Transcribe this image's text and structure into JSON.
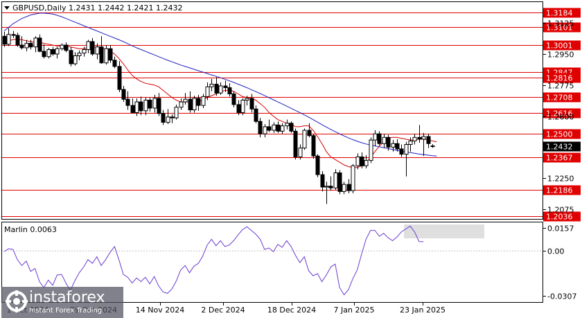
{
  "chart_data": [
    {
      "type": "candlestick",
      "title": "GBPUSD,Daily  1.2431 1.2442 1.2421 1.2432",
      "symbol": "GBPUSD",
      "timeframe": "Daily",
      "ohlc_last": {
        "open": 1.2431,
        "high": 1.2442,
        "low": 1.2421,
        "close": 1.2432
      },
      "current_price": 1.2432,
      "ylim": [
        1.1985,
        1.3225
      ],
      "price_ticks": [
        "1.3125",
        "1.2950",
        "1.2775",
        "1.2600",
        "1.2425",
        "1.2250",
        "1.2075"
      ],
      "date_ticks": [
        "14 Nov 2024",
        "2 Dec 2024",
        "18 Dec 2024",
        "7 Jan 2025",
        "23 Jan 2025"
      ],
      "date_ticks_partial": [
        "1 Oct 2024",
        "29 Oct 2024"
      ],
      "levels": [
        {
          "price": 1.3184,
          "label": "1.3184"
        },
        {
          "price": 1.3101,
          "label": "1.3101"
        },
        {
          "price": 1.3001,
          "label": "1.3001"
        },
        {
          "price": 1.2847,
          "label": "1.2847"
        },
        {
          "price": 1.2816,
          "label": "1.2816"
        },
        {
          "price": 1.2708,
          "label": "1.2708"
        },
        {
          "price": 1.2616,
          "label": "1.2616"
        },
        {
          "price": 1.25,
          "label": "1.2500"
        },
        {
          "price": 1.2367,
          "label": "1.2367"
        },
        {
          "price": 1.2186,
          "label": "1.2186"
        },
        {
          "price": 1.2036,
          "label": "1.2036"
        }
      ],
      "candles": [
        [
          1.305,
          1.3075,
          1.299,
          1.3005
        ],
        [
          1.3005,
          1.3095,
          1.2995,
          1.306
        ],
        [
          1.306,
          1.308,
          1.304,
          1.3055
        ],
        [
          1.3055,
          1.307,
          1.299,
          1.3
        ],
        [
          1.3,
          1.305,
          1.2975,
          1.2985
        ],
        [
          1.2985,
          1.303,
          1.2965,
          1.301
        ],
        [
          1.301,
          1.303,
          1.2975,
          1.299
        ],
        [
          1.299,
          1.305,
          1.296,
          1.304
        ],
        [
          1.304,
          1.306,
          1.296,
          1.2965
        ],
        [
          1.2965,
          1.3005,
          1.2925,
          1.2935
        ],
        [
          1.2935,
          1.2985,
          1.2925,
          1.2975
        ],
        [
          1.2975,
          1.299,
          1.294,
          1.295
        ],
        [
          1.295,
          1.299,
          1.2925,
          1.298
        ],
        [
          1.298,
          1.301,
          1.297,
          1.3
        ],
        [
          1.3,
          1.3015,
          1.296,
          1.297
        ],
        [
          1.297,
          1.299,
          1.288,
          1.2895
        ],
        [
          1.2895,
          1.296,
          1.2885,
          1.294
        ],
        [
          1.294,
          1.297,
          1.2915,
          1.2955
        ],
        [
          1.2955,
          1.299,
          1.2935,
          1.2975
        ],
        [
          1.2975,
          1.303,
          1.2955,
          1.302
        ],
        [
          1.302,
          1.304,
          1.294,
          1.295
        ],
        [
          1.295,
          1.301,
          1.292,
          1.299
        ],
        [
          1.299,
          1.305,
          1.2895,
          1.29
        ],
        [
          1.29,
          1.3,
          1.289,
          1.298
        ],
        [
          1.298,
          1.3,
          1.29,
          1.2915
        ],
        [
          1.2915,
          1.2935,
          1.287,
          1.288
        ],
        [
          1.288,
          1.291,
          1.2735,
          1.275
        ],
        [
          1.275,
          1.277,
          1.268,
          1.2695
        ],
        [
          1.2695,
          1.274,
          1.2635,
          1.266
        ],
        [
          1.266,
          1.27,
          1.2615,
          1.262
        ],
        [
          1.262,
          1.27,
          1.26,
          1.268
        ],
        [
          1.268,
          1.271,
          1.2605,
          1.263
        ],
        [
          1.263,
          1.2705,
          1.2605,
          1.269
        ],
        [
          1.269,
          1.2705,
          1.2625,
          1.2645
        ],
        [
          1.2645,
          1.272,
          1.262,
          1.27
        ],
        [
          1.27,
          1.273,
          1.26,
          1.2615
        ],
        [
          1.2615,
          1.2635,
          1.255,
          1.2565
        ],
        [
          1.2565,
          1.264,
          1.2555,
          1.2595
        ],
        [
          1.2595,
          1.261,
          1.256,
          1.259
        ],
        [
          1.259,
          1.2665,
          1.258,
          1.265
        ],
        [
          1.265,
          1.27,
          1.2635,
          1.268
        ],
        [
          1.268,
          1.273,
          1.2665,
          1.2695
        ],
        [
          1.2695,
          1.274,
          1.262,
          1.2635
        ],
        [
          1.2635,
          1.2715,
          1.262,
          1.27
        ],
        [
          1.27,
          1.272,
          1.263,
          1.266
        ],
        [
          1.266,
          1.2725,
          1.2645,
          1.271
        ],
        [
          1.271,
          1.279,
          1.269,
          1.2765
        ],
        [
          1.2765,
          1.281,
          1.274,
          1.278
        ],
        [
          1.278,
          1.282,
          1.2715,
          1.273
        ],
        [
          1.273,
          1.279,
          1.272,
          1.277
        ],
        [
          1.277,
          1.28,
          1.2735,
          1.276
        ],
        [
          1.276,
          1.2785,
          1.271,
          1.2725
        ],
        [
          1.2725,
          1.274,
          1.265,
          1.2665
        ],
        [
          1.2665,
          1.269,
          1.2605,
          1.262
        ],
        [
          1.262,
          1.27,
          1.2605,
          1.269
        ],
        [
          1.269,
          1.2715,
          1.266,
          1.27
        ],
        [
          1.27,
          1.2725,
          1.262,
          1.264
        ],
        [
          1.264,
          1.266,
          1.256,
          1.257
        ],
        [
          1.257,
          1.259,
          1.248,
          1.25
        ],
        [
          1.25,
          1.2555,
          1.248,
          1.254
        ],
        [
          1.254,
          1.258,
          1.251,
          1.252
        ],
        [
          1.252,
          1.2565,
          1.2505,
          1.255
        ],
        [
          1.255,
          1.257,
          1.2505,
          1.2515
        ],
        [
          1.2515,
          1.256,
          1.25,
          1.2545
        ],
        [
          1.2545,
          1.258,
          1.2525,
          1.256
        ],
        [
          1.256,
          1.257,
          1.2505,
          1.2515
        ],
        [
          1.2515,
          1.253,
          1.2355,
          1.237
        ],
        [
          1.237,
          1.244,
          1.2355,
          1.242
        ],
        [
          1.242,
          1.253,
          1.241,
          1.252
        ],
        [
          1.252,
          1.256,
          1.248,
          1.249
        ],
        [
          1.249,
          1.25,
          1.236,
          1.2375
        ],
        [
          1.2375,
          1.2385,
          1.2255,
          1.227
        ],
        [
          1.227,
          1.229,
          1.2175,
          1.22
        ],
        [
          1.22,
          1.223,
          1.2105,
          1.2205
        ],
        [
          1.2205,
          1.226,
          1.218,
          1.2195
        ],
        [
          1.2195,
          1.23,
          1.2185,
          1.228
        ],
        [
          1.228,
          1.2295,
          1.216,
          1.2175
        ],
        [
          1.2175,
          1.223,
          1.216,
          1.2215
        ],
        [
          1.2215,
          1.2245,
          1.2165,
          1.218
        ],
        [
          1.218,
          1.233,
          1.2165,
          1.232
        ],
        [
          1.232,
          1.239,
          1.23,
          1.237
        ],
        [
          1.237,
          1.2395,
          1.2305,
          1.232
        ],
        [
          1.232,
          1.238,
          1.2305,
          1.235
        ],
        [
          1.235,
          1.248,
          1.2335,
          1.2465
        ],
        [
          1.2465,
          1.252,
          1.243,
          1.25
        ],
        [
          1.25,
          1.2515,
          1.2435,
          1.2445
        ],
        [
          1.2445,
          1.25,
          1.242,
          1.248
        ],
        [
          1.248,
          1.2495,
          1.2405,
          1.2425
        ],
        [
          1.2425,
          1.2465,
          1.24,
          1.2445
        ],
        [
          1.2445,
          1.247,
          1.24,
          1.2415
        ],
        [
          1.2415,
          1.244,
          1.237,
          1.2385
        ],
        [
          1.2385,
          1.2455,
          1.226,
          1.244
        ],
        [
          1.244,
          1.248,
          1.24,
          1.246
        ],
        [
          1.246,
          1.25,
          1.244,
          1.248
        ],
        [
          1.248,
          1.255,
          1.245,
          1.247
        ],
        [
          1.247,
          1.2505,
          1.2375,
          1.2485
        ],
        [
          1.2485,
          1.25,
          1.242,
          1.2445
        ],
        [
          1.2431,
          1.2442,
          1.2421,
          1.2432
        ]
      ],
      "series": [
        {
          "name": "",
          "color": "#d60000",
          "style": "moving-average",
          "values": [
            1.302,
            1.3025,
            1.303,
            1.3035,
            1.303,
            1.3025,
            1.302,
            1.3015,
            1.3015,
            1.301,
            1.3005,
            1.3,
            1.2995,
            1.2995,
            1.2995,
            1.299,
            1.2985,
            1.298,
            1.298,
            1.2985,
            1.299,
            1.299,
            1.2985,
            1.2975,
            1.2965,
            1.295,
            1.2925,
            1.2895,
            1.286,
            1.283,
            1.281,
            1.2795,
            1.2785,
            1.278,
            1.2775,
            1.2765,
            1.2745,
            1.2725,
            1.2705,
            1.269,
            1.268,
            1.268,
            1.268,
            1.268,
            1.268,
            1.269,
            1.2705,
            1.2715,
            1.2725,
            1.2735,
            1.2745,
            1.2745,
            1.274,
            1.2725,
            1.271,
            1.2705,
            1.27,
            1.269,
            1.267,
            1.265,
            1.262,
            1.26,
            1.258,
            1.257,
            1.256,
            1.2555,
            1.254,
            1.254,
            1.2545,
            1.2545,
            1.252,
            1.2485,
            1.2445,
            1.24,
            1.237,
            1.2355,
            1.234,
            1.2325,
            1.2315,
            1.231,
            1.231,
            1.232,
            1.234,
            1.2365,
            1.24,
            1.243,
            1.2455,
            1.2475,
            1.248,
            1.248,
            1.2475,
            1.247,
            1.2465,
            1.2465,
            1.247,
            1.247,
            1.2465,
            1.246,
            1.2455
          ]
        },
        {
          "name": "",
          "color": "#2020c0",
          "style": "moving-average",
          "values": [
            1.308,
            1.31,
            1.312,
            1.3135,
            1.315,
            1.316,
            1.317,
            1.3175,
            1.318,
            1.318,
            1.3178,
            1.3175,
            1.3168,
            1.316,
            1.315,
            1.314,
            1.313,
            1.312,
            1.311,
            1.31,
            1.309,
            1.308,
            1.307,
            1.306,
            1.305,
            1.304,
            1.303,
            1.302,
            1.3008,
            1.2996,
            1.2985,
            1.2975,
            1.2965,
            1.2955,
            1.2945,
            1.2935,
            1.2925,
            1.2915,
            1.2906,
            1.2897,
            1.2888,
            1.288,
            1.2872,
            1.2864,
            1.2856,
            1.2848,
            1.284,
            1.2832,
            1.2824,
            1.2816,
            1.2808,
            1.2799,
            1.279,
            1.278,
            1.277,
            1.276,
            1.2749,
            1.2738,
            1.2727,
            1.2716,
            1.2704,
            1.2692,
            1.268,
            1.2668,
            1.2656,
            1.2644,
            1.2632,
            1.262,
            1.2607,
            1.2594,
            1.258,
            1.2566,
            1.2552,
            1.2538,
            1.2525,
            1.2512,
            1.25,
            1.2488,
            1.2477,
            1.2467,
            1.2458,
            1.245,
            1.2443,
            1.2437,
            1.2432,
            1.2427,
            1.2422,
            1.2417,
            1.2412,
            1.2407,
            1.2402,
            1.2398,
            1.2394,
            1.239,
            1.2386,
            1.2383,
            1.238,
            1.2377,
            1.2375
          ]
        }
      ]
    },
    {
      "type": "line",
      "title": "Marlin 0.0063",
      "indicator": "Marlin",
      "current_value": 0.0063,
      "ylim": [
        -0.04,
        0.02
      ],
      "value_ticks": [
        "0.0157",
        "0.00",
        "-0.0307"
      ],
      "series": [
        {
          "name": "",
          "color": "#6a3bd1",
          "values": [
            -0.0005,
            0.0015,
            0.001,
            -0.006,
            -0.01,
            -0.007,
            -0.014,
            -0.012,
            -0.021,
            -0.025,
            -0.02,
            -0.0235,
            -0.0165,
            -0.016,
            -0.022,
            -0.027,
            -0.0205,
            -0.015,
            -0.011,
            -0.006,
            -0.0085,
            -0.004,
            -0.01,
            -0.006,
            -0.001,
            0.003,
            -0.006,
            -0.016,
            -0.018,
            -0.022,
            -0.0185,
            -0.021,
            -0.018,
            -0.0225,
            -0.0175,
            -0.024,
            -0.028,
            -0.029,
            -0.026,
            -0.0205,
            -0.013,
            -0.01,
            -0.015,
            -0.0105,
            -0.0085,
            -0.0035,
            0.004,
            0.008,
            0.0035,
            0.007,
            0.003,
            0.004,
            0.007,
            0.011,
            0.0145,
            0.0165,
            0.014,
            0.0115,
            0.008,
            0.001,
            0.002,
            -0.0005,
            0.0045,
            0.0025,
            0.007,
            0.003,
            -0.003,
            -0.008,
            -0.004,
            -0.0135,
            -0.017,
            -0.0155,
            -0.021,
            -0.0165,
            -0.011,
            -0.009,
            -0.025,
            -0.03,
            -0.0265,
            -0.019,
            -0.013,
            -0.002,
            0.008,
            0.014,
            0.014,
            0.01,
            0.012,
            0.009,
            0.007,
            0.0095,
            0.013,
            0.015,
            0.017,
            0.013,
            0.0064,
            0.0063
          ]
        }
      ]
    }
  ],
  "watermark": {
    "name": "instaforex",
    "tagline": "Instant Forex Trading"
  }
}
